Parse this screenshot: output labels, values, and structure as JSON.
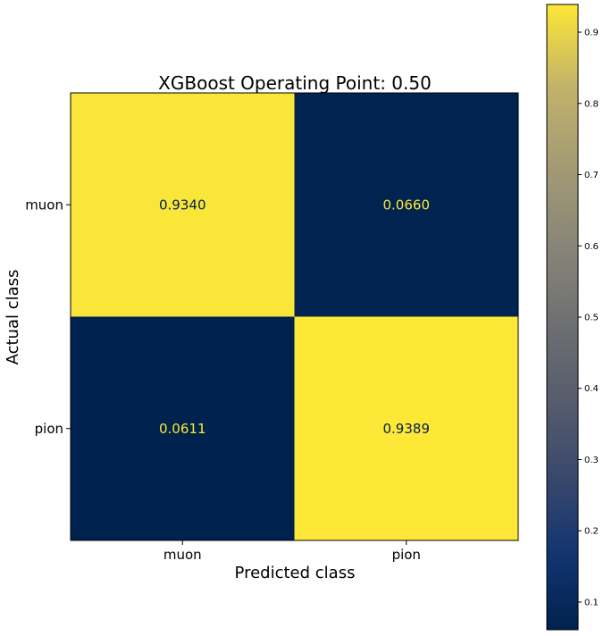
{
  "chart_data": {
    "type": "heatmap",
    "title": "XGBoost Operating Point: 0.50",
    "xlabel": "Predicted class",
    "ylabel": "Actual class",
    "x_categories": [
      "muon",
      "pion"
    ],
    "y_categories": [
      "muon",
      "pion"
    ],
    "values": [
      [
        0.934,
        0.066
      ],
      [
        0.0611,
        0.9389
      ]
    ],
    "value_labels": [
      [
        "0.9340",
        "0.0660"
      ],
      [
        "0.0611",
        "0.9389"
      ]
    ],
    "colormap": "cividis",
    "colorbar": {
      "range": [
        0.0611,
        0.9389
      ],
      "ticks": [
        0.1,
        0.2,
        0.3,
        0.4,
        0.5,
        0.6,
        0.7,
        0.8,
        0.9
      ],
      "tick_labels": [
        "0.1",
        "0.2",
        "0.3",
        "0.4",
        "0.5",
        "0.6",
        "0.7",
        "0.8",
        "0.9"
      ]
    },
    "colors": {
      "high": "#FDE737",
      "low": "#00224E",
      "text_on_high": "#00224E",
      "text_on_low": "#FDE737"
    }
  }
}
